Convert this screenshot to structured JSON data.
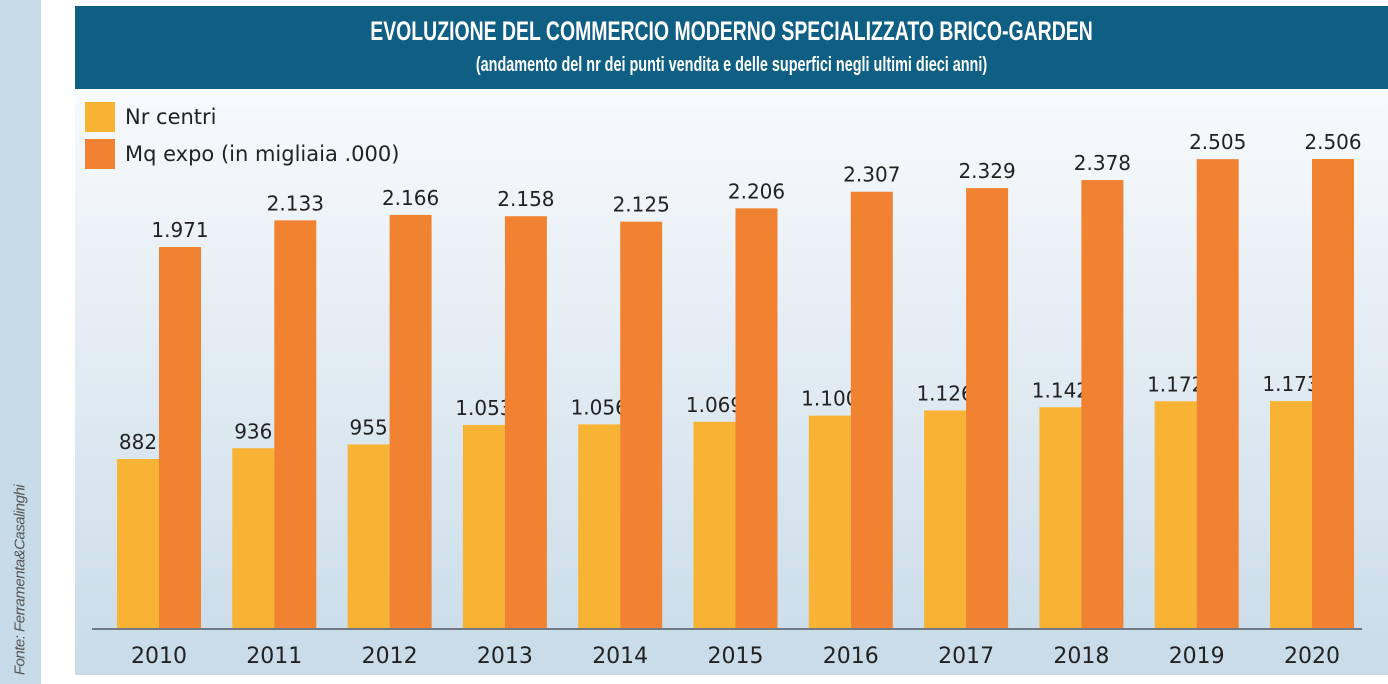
{
  "source": "Fonte: Ferramenta&Casalinghi",
  "chart_data": {
    "type": "bar",
    "title": "EVOLUZIONE DEL COMMERCIO MODERNO SPECIALIZZATO BRICO-GARDEN",
    "subtitle": "(andamento del nr dei punti vendita e delle superfici negli ultimi dieci anni)",
    "xlabel": "",
    "ylabel": "",
    "legend_position": "top-left",
    "categories": [
      "2010",
      "2011",
      "2012",
      "2013",
      "2014",
      "2015",
      "2016",
      "2017",
      "2018",
      "2019",
      "2020"
    ],
    "series": [
      {
        "name": "Nr centri",
        "color": "#f8b334",
        "values": [
          882,
          936,
          955,
          1053,
          1056,
          1069,
          1100,
          1126,
          1142,
          1172,
          1173
        ],
        "labels": [
          "882",
          "936",
          "955",
          "1.053",
          "1.056",
          "1.069",
          "1.100",
          "1.126",
          "1.142",
          "1.172",
          "1.173"
        ]
      },
      {
        "name": "Mq expo (in migliaia .000)",
        "color": "#f08232",
        "values": [
          1971,
          2133,
          2166,
          2158,
          2125,
          2206,
          2307,
          2329,
          2378,
          2505,
          2506
        ],
        "labels": [
          "1.971",
          "2.133",
          "2.166",
          "2.158",
          "2.125",
          "2.206",
          "2.307",
          "2.329",
          "2.378",
          "2.505",
          "2.506"
        ]
      }
    ]
  }
}
